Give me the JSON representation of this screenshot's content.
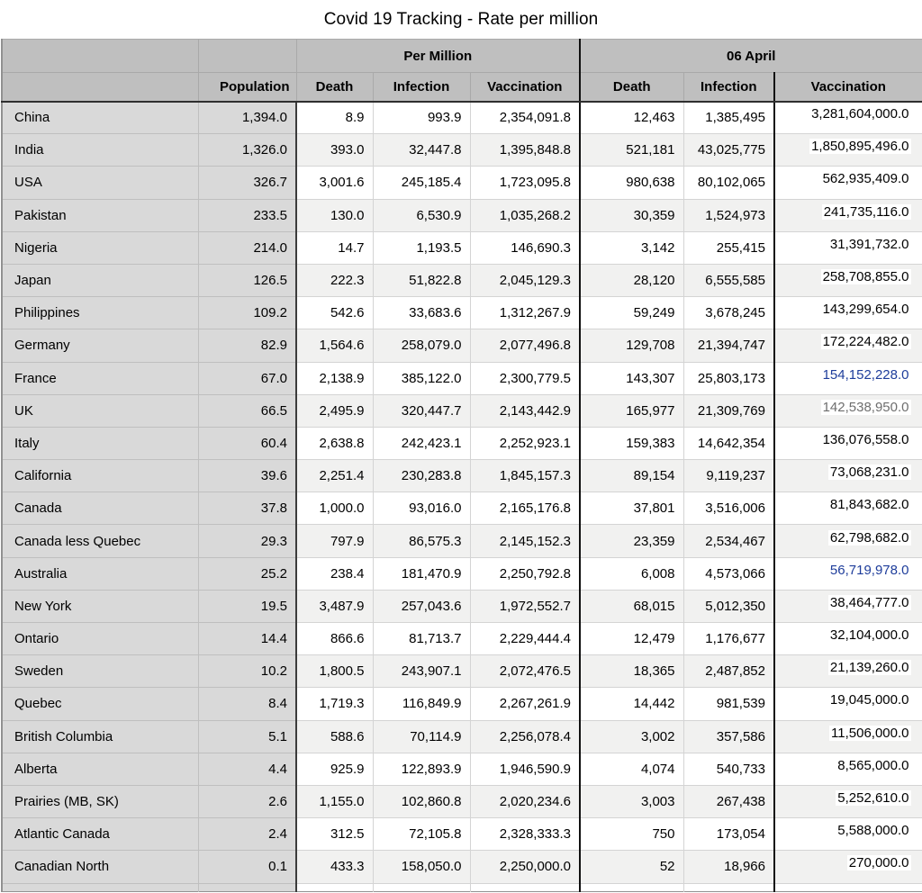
{
  "title": "Covid 19 Tracking - Rate per million",
  "header": {
    "groups": [
      {
        "label": "Per Million"
      },
      {
        "label": "06 April"
      }
    ],
    "columns": [
      "Population",
      "Death",
      "Infection",
      "Vaccination",
      "Death",
      "Infection",
      "Vaccination"
    ]
  },
  "colors": {
    "header_bg": "#bfbfbf",
    "row_label_bg": "#d9d9d9",
    "stripe_bg": "#f1f1f0",
    "accent_blue": "#1e3d9b",
    "muted_gray_text": "#6e6e6e"
  },
  "rows": [
    {
      "name": "China",
      "population": "1,394.0",
      "pm_death": "8.9",
      "pm_infection": "993.9",
      "pm_vaccination": "2,354,091.8",
      "apr_death": "12,463",
      "apr_infection": "1,385,495",
      "apr_vaccination": "3,281,604,000.0"
    },
    {
      "name": "India",
      "population": "1,326.0",
      "pm_death": "393.0",
      "pm_infection": "32,447.8",
      "pm_vaccination": "1,395,848.8",
      "apr_death": "521,181",
      "apr_infection": "43,025,775",
      "apr_vaccination": "1,850,895,496.0"
    },
    {
      "name": "USA",
      "population": "326.7",
      "pm_death": "3,001.6",
      "pm_infection": "245,185.4",
      "pm_vaccination": "1,723,095.8",
      "apr_death": "980,638",
      "apr_infection": "80,102,065",
      "apr_vaccination": "562,935,409.0"
    },
    {
      "name": "Pakistan",
      "population": "233.5",
      "pm_death": "130.0",
      "pm_infection": "6,530.9",
      "pm_vaccination": "1,035,268.2",
      "apr_death": "30,359",
      "apr_infection": "1,524,973",
      "apr_vaccination": "241,735,116.0"
    },
    {
      "name": "Nigeria",
      "population": "214.0",
      "pm_death": "14.7",
      "pm_infection": "1,193.5",
      "pm_vaccination": "146,690.3",
      "apr_death": "3,142",
      "apr_infection": "255,415",
      "apr_vaccination": "31,391,732.0"
    },
    {
      "name": "Japan",
      "population": "126.5",
      "pm_death": "222.3",
      "pm_infection": "51,822.8",
      "pm_vaccination": "2,045,129.3",
      "apr_death": "28,120",
      "apr_infection": "6,555,585",
      "apr_vaccination": "258,708,855.0"
    },
    {
      "name": "Philippines",
      "population": "109.2",
      "pm_death": "542.6",
      "pm_infection": "33,683.6",
      "pm_vaccination": "1,312,267.9",
      "apr_death": "59,249",
      "apr_infection": "3,678,245",
      "apr_vaccination": "143,299,654.0"
    },
    {
      "name": "Germany",
      "population": "82.9",
      "pm_death": "1,564.6",
      "pm_infection": "258,079.0",
      "pm_vaccination": "2,077,496.8",
      "apr_death": "129,708",
      "apr_infection": "21,394,747",
      "apr_vaccination": "172,224,482.0"
    },
    {
      "name": "France",
      "population": "67.0",
      "pm_death": "2,138.9",
      "pm_infection": "385,122.0",
      "pm_vaccination": "2,300,779.5",
      "apr_death": "143,307",
      "apr_infection": "25,803,173",
      "apr_vaccination": "154,152,228.0",
      "apr_vaccination_style": "blue"
    },
    {
      "name": "UK",
      "population": "66.5",
      "pm_death": "2,495.9",
      "pm_infection": "320,447.7",
      "pm_vaccination": "2,143,442.9",
      "apr_death": "165,977",
      "apr_infection": "21,309,769",
      "apr_vaccination": "142,538,950.0",
      "apr_vaccination_style": "gray"
    },
    {
      "name": "Italy",
      "population": "60.4",
      "pm_death": "2,638.8",
      "pm_infection": "242,423.1",
      "pm_vaccination": "2,252,923.1",
      "apr_death": "159,383",
      "apr_infection": "14,642,354",
      "apr_vaccination": "136,076,558.0"
    },
    {
      "name": "California",
      "population": "39.6",
      "pm_death": "2,251.4",
      "pm_infection": "230,283.8",
      "pm_vaccination": "1,845,157.3",
      "apr_death": "89,154",
      "apr_infection": "9,119,237",
      "apr_vaccination": "73,068,231.0"
    },
    {
      "name": "Canada",
      "population": "37.8",
      "pm_death": "1,000.0",
      "pm_infection": "93,016.0",
      "pm_vaccination": "2,165,176.8",
      "apr_death": "37,801",
      "apr_infection": "3,516,006",
      "apr_vaccination": "81,843,682.0"
    },
    {
      "name": "Canada less Quebec",
      "population": "29.3",
      "pm_death": "797.9",
      "pm_infection": "86,575.3",
      "pm_vaccination": "2,145,152.3",
      "apr_death": "23,359",
      "apr_infection": "2,534,467",
      "apr_vaccination": "62,798,682.0"
    },
    {
      "name": "Australia",
      "population": "25.2",
      "pm_death": "238.4",
      "pm_infection": "181,470.9",
      "pm_vaccination": "2,250,792.8",
      "apr_death": "6,008",
      "apr_infection": "4,573,066",
      "apr_vaccination": "56,719,978.0",
      "apr_vaccination_style": "blue"
    },
    {
      "name": "New York",
      "population": "19.5",
      "pm_death": "3,487.9",
      "pm_infection": "257,043.6",
      "pm_vaccination": "1,972,552.7",
      "apr_death": "68,015",
      "apr_infection": "5,012,350",
      "apr_vaccination": "38,464,777.0"
    },
    {
      "name": "Ontario",
      "population": "14.4",
      "pm_death": "866.6",
      "pm_infection": "81,713.7",
      "pm_vaccination": "2,229,444.4",
      "apr_death": "12,479",
      "apr_infection": "1,176,677",
      "apr_vaccination": "32,104,000.0"
    },
    {
      "name": "Sweden",
      "population": "10.2",
      "pm_death": "1,800.5",
      "pm_infection": "243,907.1",
      "pm_vaccination": "2,072,476.5",
      "apr_death": "18,365",
      "apr_infection": "2,487,852",
      "apr_vaccination": "21,139,260.0"
    },
    {
      "name": "Quebec",
      "population": "8.4",
      "pm_death": "1,719.3",
      "pm_infection": "116,849.9",
      "pm_vaccination": "2,267,261.9",
      "apr_death": "14,442",
      "apr_infection": "981,539",
      "apr_vaccination": "19,045,000.0"
    },
    {
      "name": "British Columbia",
      "population": "5.1",
      "pm_death": "588.6",
      "pm_infection": "70,114.9",
      "pm_vaccination": "2,256,078.4",
      "apr_death": "3,002",
      "apr_infection": "357,586",
      "apr_vaccination": "11,506,000.0"
    },
    {
      "name": "Alberta",
      "population": "4.4",
      "pm_death": "925.9",
      "pm_infection": "122,893.9",
      "pm_vaccination": "1,946,590.9",
      "apr_death": "4,074",
      "apr_infection": "540,733",
      "apr_vaccination": "8,565,000.0"
    },
    {
      "name": "Prairies (MB, SK)",
      "population": "2.6",
      "pm_death": "1,155.0",
      "pm_infection": "102,860.8",
      "pm_vaccination": "2,020,234.6",
      "apr_death": "3,003",
      "apr_infection": "267,438",
      "apr_vaccination": "5,252,610.0"
    },
    {
      "name": "Atlantic Canada",
      "population": "2.4",
      "pm_death": "312.5",
      "pm_infection": "72,105.8",
      "pm_vaccination": "2,328,333.3",
      "apr_death": "750",
      "apr_infection": "173,054",
      "apr_vaccination": "5,588,000.0"
    },
    {
      "name": "Canadian North",
      "population": "0.1",
      "pm_death": "433.3",
      "pm_infection": "158,050.0",
      "pm_vaccination": "2,250,000.0",
      "apr_death": "52",
      "apr_infection": "18,966",
      "apr_vaccination": "270,000.0"
    }
  ]
}
